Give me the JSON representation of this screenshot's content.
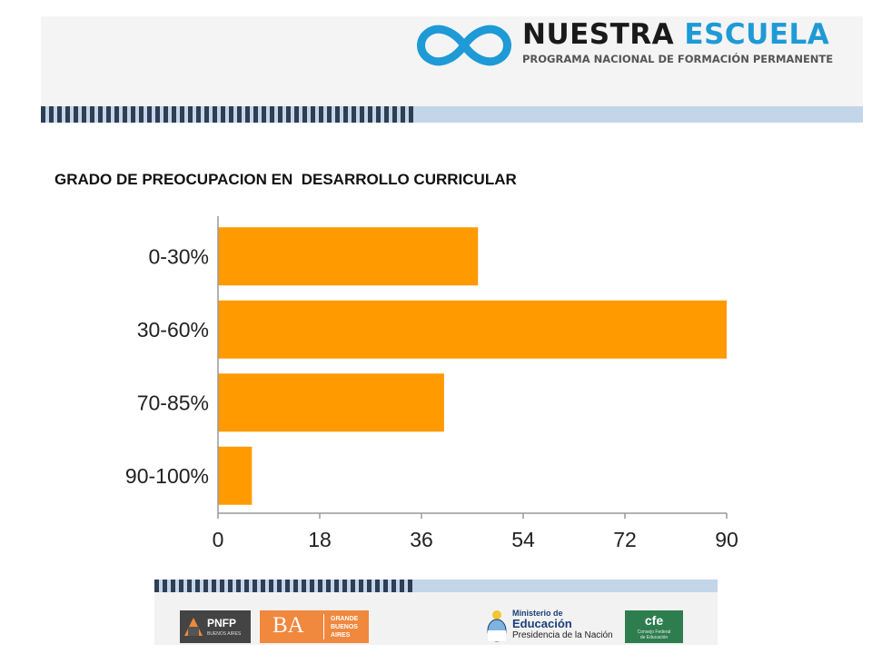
{
  "header": {
    "logo_name_part1": "NUESTRA ",
    "logo_name_part2": "ESCUELA",
    "logo_subtitle": "PROGRAMA NACIONAL DE FORMACIÓN PERMANENTE",
    "colors": {
      "brand_blue": "#1e9ad6",
      "stripe_dark": "#2f3e55",
      "stripe_light": "#c3d5e8"
    }
  },
  "title": "GRADO DE PREOCUPACION EN  DESARROLLO CURRICULAR",
  "chart_data": {
    "type": "bar",
    "orientation": "horizontal",
    "categories": [
      "0-30%",
      "30-60%",
      "70-85%",
      "90-100%"
    ],
    "values": [
      46,
      90,
      40,
      6
    ],
    "xlim": [
      0,
      90
    ],
    "xticks": [
      0,
      18,
      36,
      54,
      72,
      90
    ],
    "bar_color": "#ff9a00",
    "grid": false,
    "legend": "none"
  },
  "footer": {
    "logos": [
      {
        "name": "pnfp",
        "text": "PNFP",
        "subtext": "BUENOS AIRES"
      },
      {
        "name": "ba",
        "text": "BA",
        "side_text": [
          "GRANDE",
          "BUENOS",
          "AIRES"
        ]
      },
      {
        "name": "ministerio",
        "lines": [
          "Ministerio de",
          "Educación",
          "Presidencia de la Nación"
        ]
      },
      {
        "name": "cfe",
        "text": "cfe",
        "subtext": [
          "Consejo Federal",
          "de Educación"
        ]
      }
    ],
    "colors": {
      "pnfp_bg": "#444444",
      "ba_bg": "#f0883e",
      "cfe_bg": "#2e7d4f",
      "min_blue": "#1b3f7a"
    }
  }
}
